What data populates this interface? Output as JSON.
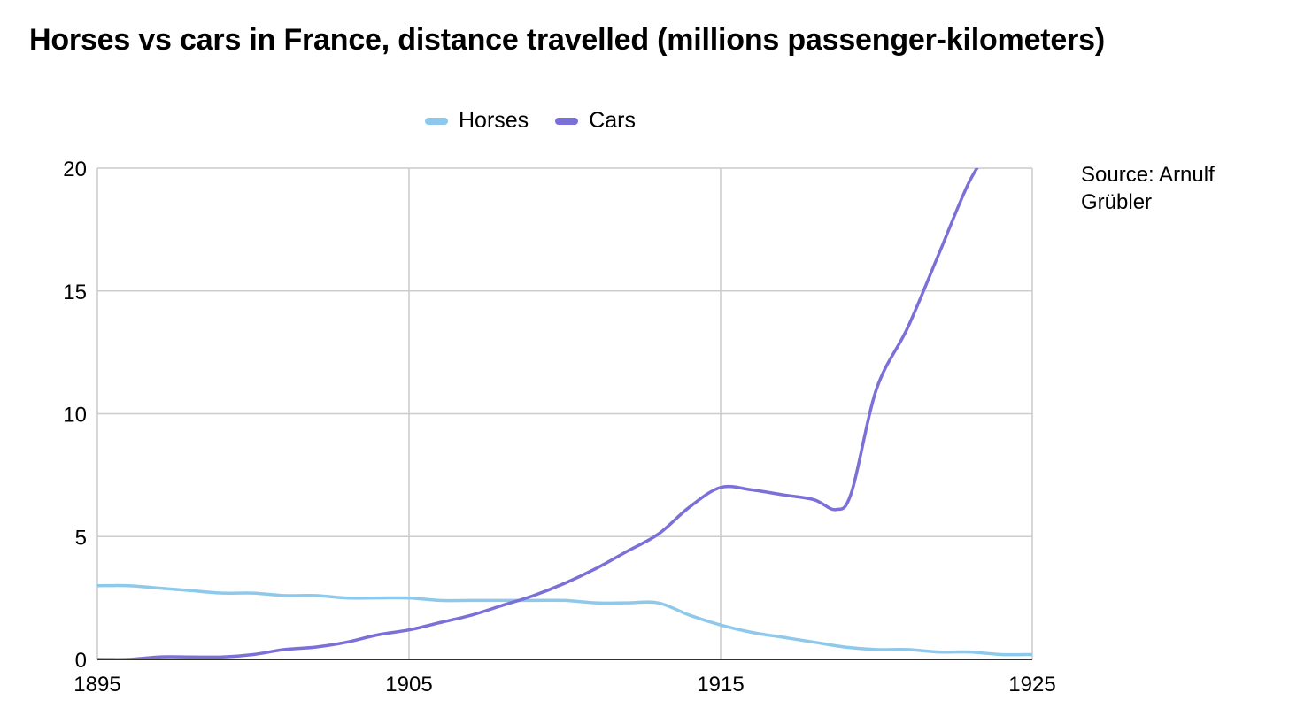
{
  "chart_data": {
    "type": "line",
    "title": "Horses vs cars in France, distance travelled (millions passenger-kilometers)",
    "xlabel": "",
    "ylabel": "",
    "xlim": [
      1895,
      1925
    ],
    "ylim": [
      0,
      20
    ],
    "x_ticks": [
      1895,
      1905,
      1915,
      1925
    ],
    "y_ticks": [
      0,
      5,
      10,
      15,
      20
    ],
    "grid": true,
    "legend_position": "top",
    "annotation": "Source: Arnulf Grübler",
    "series": [
      {
        "name": "Horses",
        "color": "#8ec9ec",
        "x": [
          1895,
          1896,
          1897,
          1898,
          1899,
          1900,
          1901,
          1902,
          1903,
          1904,
          1905,
          1906,
          1907,
          1908,
          1909,
          1910,
          1911,
          1912,
          1913,
          1914,
          1915,
          1916,
          1917,
          1918,
          1919,
          1920,
          1921,
          1922,
          1923,
          1924,
          1925
        ],
        "values": [
          3.0,
          3.0,
          2.9,
          2.8,
          2.7,
          2.7,
          2.6,
          2.6,
          2.5,
          2.5,
          2.5,
          2.4,
          2.4,
          2.4,
          2.4,
          2.4,
          2.3,
          2.3,
          2.3,
          1.8,
          1.4,
          1.1,
          0.9,
          0.7,
          0.5,
          0.4,
          0.4,
          0.3,
          0.3,
          0.2,
          0.2
        ]
      },
      {
        "name": "Cars",
        "color": "#7b6fd8",
        "x": [
          1895,
          1896,
          1897,
          1898,
          1899,
          1900,
          1901,
          1902,
          1903,
          1904,
          1905,
          1906,
          1907,
          1908,
          1909,
          1910,
          1911,
          1912,
          1913,
          1914,
          1915,
          1916,
          1917,
          1918,
          1918.7,
          1919.2,
          1920,
          1921,
          1922,
          1923,
          1923.8
        ],
        "values": [
          0,
          0,
          0.1,
          0.1,
          0.1,
          0.2,
          0.4,
          0.5,
          0.7,
          1.0,
          1.2,
          1.5,
          1.8,
          2.2,
          2.6,
          3.1,
          3.7,
          4.4,
          5.1,
          6.2,
          7.0,
          6.9,
          6.7,
          6.5,
          6.1,
          6.8,
          11.0,
          13.5,
          16.5,
          19.5,
          21.0
        ]
      }
    ]
  }
}
